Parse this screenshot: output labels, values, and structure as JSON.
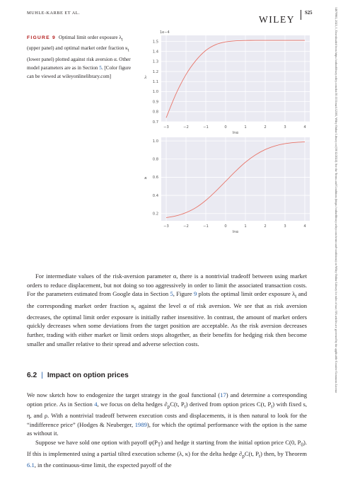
{
  "header": {
    "running_title": "MUHLE-KARBE ET AL.",
    "publisher": "WILEY",
    "page_number": "S25"
  },
  "side_text": "14679965, 2025, 1, Downloaded from https://onlinelibrary.wiley.com/doi/10.1111/mafi.12505, Wiley Online Library on [18/12/2024]. See the Terms and Conditions (https://onlinelibrary.wiley.com/terms-and-conditions) on Wiley Online Library for rules of use; OA articles are governed by the applicable Creative Commons License",
  "caption": {
    "label": "FIGURE 9",
    "text_1": "Optimal limit order exposure λ",
    "sub_1": "t",
    "text_2": " (upper panel) and optimal market order fraction κ",
    "sub_2": "t",
    "text_3": " (lower panel) plotted against risk aversion α. Other model parameters are as in Section ",
    "section_link": "5",
    "text_4": ". [Color figure can be viewed at wileyonlinelibrary.com]"
  },
  "chart_data": [
    {
      "type": "line",
      "panel": "upper",
      "xlabel": "lnα",
      "ylabel": "λ",
      "offset_label": "1e−4",
      "xlim": [
        -3.25,
        4.25
      ],
      "ylim": [
        0.7,
        1.56
      ],
      "xticks": [
        -3,
        -2,
        -1,
        0,
        1,
        2,
        3,
        4
      ],
      "xtick_labels": [
        "−3",
        "−2",
        "−1",
        "0",
        "1",
        "2",
        "3",
        "4"
      ],
      "yticks": [
        0.7,
        0.8,
        0.9,
        1.0,
        1.1,
        1.2,
        1.3,
        1.4,
        1.5
      ],
      "ytick_labels": [
        "0.7",
        "0.8",
        "0.9",
        "1.0",
        "1.1",
        "1.2",
        "1.3",
        "1.4",
        "1.5"
      ],
      "grid": true,
      "line_color": "#e8756a",
      "x": [
        -3.0,
        -2.5,
        -2.0,
        -1.5,
        -1.0,
        -0.5,
        0.0,
        0.5,
        1.0,
        1.5,
        2.0,
        2.5,
        3.0,
        3.5,
        4.0
      ],
      "y": [
        0.74,
        0.98,
        1.17,
        1.31,
        1.41,
        1.468,
        1.495,
        1.506,
        1.509,
        1.51,
        1.51,
        1.51,
        1.51,
        1.51,
        1.51
      ]
    },
    {
      "type": "line",
      "panel": "lower",
      "xlabel": "lnα",
      "ylabel": "κ",
      "xlim": [
        -3.25,
        4.25
      ],
      "ylim": [
        0.12,
        1.04
      ],
      "xticks": [
        -3,
        -2,
        -1,
        0,
        1,
        2,
        3,
        4
      ],
      "xtick_labels": [
        "−3",
        "−2",
        "−1",
        "0",
        "1",
        "2",
        "3",
        "4"
      ],
      "yticks": [
        0.2,
        0.4,
        0.6,
        0.8,
        1.0
      ],
      "ytick_labels": [
        "0.2",
        "0.4",
        "0.6",
        "0.8",
        "1.0"
      ],
      "grid": true,
      "line_color": "#e8756a",
      "x": [
        -3.0,
        -2.5,
        -2.0,
        -1.5,
        -1.0,
        -0.5,
        0.0,
        0.5,
        1.0,
        1.5,
        2.0,
        2.5,
        3.0,
        3.5,
        4.0
      ],
      "y": [
        0.155,
        0.175,
        0.21,
        0.265,
        0.345,
        0.445,
        0.555,
        0.665,
        0.765,
        0.845,
        0.905,
        0.945,
        0.97,
        0.983,
        0.99
      ]
    }
  ],
  "para1": {
    "t1": "For intermediate values of the risk-aversion parameter α, there is a nontrivial tradeoff between using market orders to reduce displacement, but not doing so too aggressively in order to limit the associated transaction costs. For the parameters estimated from Google data in Section ",
    "l1": "5",
    "t2": ", Figure ",
    "l2": "9",
    "t3": " plots the optimal limit order exposure λ",
    "s1": "t",
    "t4": " and the corresponding market order fraction κ",
    "s2": "t",
    "t5": " against the level α of risk aversion. We see that as risk aversion decreases, the optimal limit order exposure is initially rather insensitive. In contrast, the amount of market orders quickly decreases when some deviations from the target position are acceptable. As the risk aversion decreases further, trading with either market or limit orders stops altogether, as their benefits for hedging risk then become smaller and smaller relative to their spread and adverse selection costs."
  },
  "section": {
    "number": "6.2",
    "separator": "|",
    "title": "Impact on option prices"
  },
  "para2": {
    "t1": "We now sketch how to endogenize the target strategy in the goal functional (",
    "l1": "17",
    "t2": ") and determine a corresponding option price. As in Section ",
    "l2": "4",
    "t3": ", we focus on delta hedges ∂",
    "s1": "p",
    "t4": "C(t, P",
    "s2": "t",
    "t5": ") derived from option prices C(t, P",
    "s3": "t",
    "t6": ") with fixed s, η, and ρ. With a nontrivial tradeoff between execution costs and displacements, it is then natural to look for the “indifference price” (Hodges & Neuberger, ",
    "l3": "1989",
    "t7": "), for which the optimal performance with the option is the same as without it."
  },
  "para3": {
    "t1": "Suppose we have sold one option with payoff φ(P",
    "s1": "T",
    "t2": ") and hedge it starting from the initial option price C(0, P",
    "s2": "0",
    "t3": "). If this is implemented using a partial tilted execution scheme (λ, κ) for the delta hedge ∂",
    "s3": "p",
    "t4": "C(t, P",
    "s4": "t",
    "t5": ") then, by Theorem ",
    "l1": "6.1",
    "t6": ", in the continuous-time limit, the expected payoff of the"
  }
}
